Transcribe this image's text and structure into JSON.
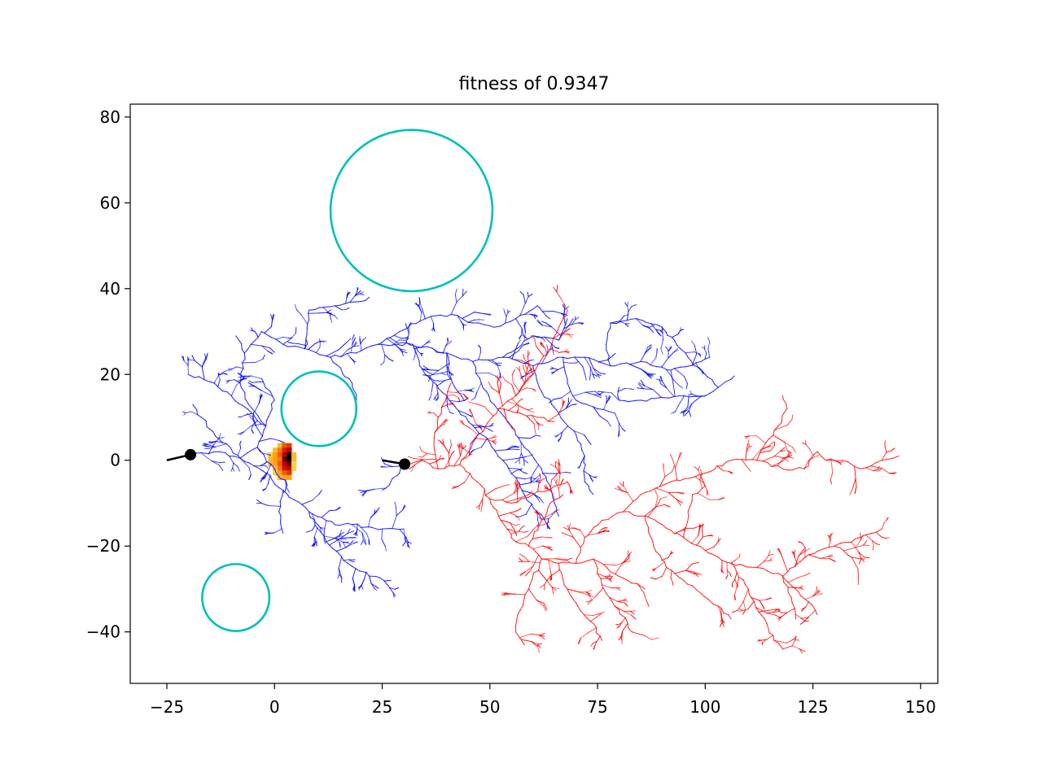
{
  "chart_data": {
    "type": "scatter",
    "title": "fitness of 0.9347",
    "xlabel": "",
    "ylabel": "",
    "xlim": [
      -33.5,
      154
    ],
    "ylim": [
      -52,
      83
    ],
    "xticks": [
      -25,
      0,
      25,
      50,
      75,
      100,
      125,
      150
    ],
    "yticks": [
      -40,
      -20,
      0,
      20,
      40,
      60,
      80
    ],
    "xtick_labels": [
      "−25",
      "0",
      "25",
      "50",
      "75",
      "100",
      "125",
      "150"
    ],
    "ytick_labels": [
      "−40",
      "−20",
      "0",
      "20",
      "40",
      "60",
      "80"
    ],
    "grid": false,
    "legend": "none",
    "obstacles": [
      {
        "cx": 31.8,
        "cy": 58.2,
        "r": 18.8
      },
      {
        "cx": 10.3,
        "cy": 12.0,
        "r": 8.7
      },
      {
        "cx": -9.0,
        "cy": -32.0,
        "r": 7.8
      }
    ],
    "start_points": [
      {
        "x": -19.5,
        "y": 1.3
      },
      {
        "x": 30.2,
        "y": -0.9
      }
    ],
    "start_segments": [
      {
        "x1": -25.0,
        "y1": 0.0,
        "x2": -19.5,
        "y2": 1.3
      },
      {
        "x1": 25.0,
        "y1": 0.0,
        "x2": 30.2,
        "y2": -0.9
      }
    ],
    "series": [
      {
        "color": "#0000ff",
        "trunks": [
          [
            [
              -19.5,
              1.3
            ],
            [
              -13,
              2
            ],
            [
              -8,
              0.5
            ],
            [
              -4,
              3
            ],
            [
              -2,
              8
            ],
            [
              -6,
              13
            ],
            [
              -8,
              18
            ],
            [
              -7,
              25
            ],
            [
              -9,
              29
            ]
          ],
          [
            [
              -7,
              25
            ],
            [
              -3,
              30
            ],
            [
              2,
              27
            ],
            [
              7,
              26
            ],
            [
              13,
              24
            ],
            [
              19,
              25
            ],
            [
              24,
              27
            ],
            [
              29,
              30
            ],
            [
              35,
              33
            ],
            [
              41,
              34
            ],
            [
              46,
              32
            ],
            [
              51,
              31
            ],
            [
              56,
              33
            ],
            [
              61,
              36
            ],
            [
              64,
              33
            ]
          ],
          [
            [
              7,
              26
            ],
            [
              8,
              35
            ],
            [
              14,
              36
            ],
            [
              20,
              37
            ],
            [
              22,
              38
            ]
          ],
          [
            [
              24,
              27
            ],
            [
              32,
              27
            ],
            [
              40,
              25
            ],
            [
              46,
              23
            ],
            [
              53,
              24
            ],
            [
              60,
              22
            ],
            [
              67,
              24
            ],
            [
              72,
              24
            ],
            [
              78,
              22
            ],
            [
              85,
              23
            ],
            [
              92,
              21
            ],
            [
              99,
              23
            ],
            [
              101,
              24
            ]
          ],
          [
            [
              78,
              22
            ],
            [
              77,
              27
            ],
            [
              78,
              32
            ],
            [
              84,
              33
            ],
            [
              90,
              31
            ],
            [
              96,
              24
            ],
            [
              100,
              20
            ],
            [
              103,
              17
            ],
            [
              100,
              15
            ],
            [
              94,
              15
            ],
            [
              85,
              14
            ],
            [
              80,
              14
            ],
            [
              80,
              17
            ]
          ],
          [
            [
              53,
              24
            ],
            [
              60,
              29
            ],
            [
              66,
              28
            ],
            [
              68,
              33
            ]
          ],
          [
            [
              -8,
              0.5
            ],
            [
              -2,
              -3
            ],
            [
              2,
              -7
            ],
            [
              8,
              -12
            ],
            [
              14,
              -15
            ],
            [
              18,
              -15
            ],
            [
              25,
              -16
            ],
            [
              30,
              -16
            ]
          ],
          [
            [
              8,
              -12
            ],
            [
              12,
              -19
            ],
            [
              17,
              -24
            ],
            [
              22,
              -27
            ],
            [
              27,
              -28
            ]
          ],
          [
            [
              2,
              -7
            ],
            [
              1,
              -12
            ],
            [
              2,
              -17
            ]
          ],
          [
            [
              -8,
              0.5
            ],
            [
              -13,
              5
            ],
            [
              -17,
              10
            ],
            [
              -19,
              13
            ]
          ],
          [
            [
              -2,
              8
            ],
            [
              -10,
              15
            ],
            [
              -14,
              18
            ],
            [
              -20,
              20
            ]
          ],
          [
            [
              -4,
              3
            ],
            [
              0,
              -2
            ],
            [
              3,
              -6
            ]
          ],
          [
            [
              46,
              23
            ],
            [
              48,
              18
            ],
            [
              51,
              13
            ],
            [
              55,
              8
            ],
            [
              58,
              3
            ],
            [
              62,
              -2
            ],
            [
              64,
              -6
            ],
            [
              65,
              -10
            ],
            [
              66,
              -13
            ]
          ],
          [
            [
              32,
              27
            ],
            [
              35,
              20
            ],
            [
              40,
              15
            ],
            [
              45,
              9
            ],
            [
              50,
              4
            ],
            [
              53,
              0
            ],
            [
              56,
              -4
            ],
            [
              58,
              -8
            ],
            [
              61,
              -12
            ],
            [
              64,
              -16
            ]
          ],
          [
            [
              40,
              25
            ],
            [
              41,
              19
            ],
            [
              44,
              14
            ]
          ],
          [
            [
              60,
              22
            ],
            [
              62,
              16
            ],
            [
              66,
              11
            ],
            [
              70,
              6
            ],
            [
              72,
              1
            ],
            [
              72,
              -5
            ],
            [
              74,
              -8
            ]
          ],
          [
            [
              67,
              24
            ],
            [
              68,
              18
            ],
            [
              70,
              14
            ],
            [
              75,
              12
            ],
            [
              79,
              11
            ]
          ],
          [
            [
              30,
              0
            ],
            [
              29,
              -3
            ],
            [
              25,
              -7
            ]
          ],
          [
            [
              -2,
              8
            ],
            [
              0,
              14
            ],
            [
              -3,
              19
            ]
          ],
          [
            [
              13,
              24
            ],
            [
              18,
              18
            ],
            [
              19,
              14
            ]
          ]
        ]
      },
      {
        "color": "#ff0000",
        "trunks": [
          [
            [
              30.2,
              -0.9
            ],
            [
              34,
              0
            ],
            [
              38,
              -2
            ],
            [
              43,
              -1
            ],
            [
              47,
              -5
            ],
            [
              50,
              -9
            ],
            [
              52,
              -13
            ],
            [
              54,
              -16
            ],
            [
              56,
              -19
            ],
            [
              59,
              -20
            ],
            [
              62,
              -23
            ],
            [
              66,
              -24
            ],
            [
              70,
              -24
            ],
            [
              74,
              -23
            ],
            [
              78,
              -26
            ],
            [
              82,
              -28
            ],
            [
              86,
              -30
            ]
          ],
          [
            [
              43,
              -1
            ],
            [
              46,
              4
            ],
            [
              49,
              8
            ],
            [
              52,
              12
            ],
            [
              56,
              15
            ],
            [
              58,
              18
            ],
            [
              60,
              20
            ]
          ],
          [
            [
              38,
              -2
            ],
            [
              37,
              4
            ],
            [
              38,
              10
            ],
            [
              40,
              15
            ],
            [
              41,
              18
            ]
          ],
          [
            [
              56,
              15
            ],
            [
              60,
              20
            ],
            [
              64,
              26
            ],
            [
              66,
              31
            ],
            [
              68,
              35
            ]
          ],
          [
            [
              50,
              -9
            ],
            [
              55,
              -10
            ],
            [
              60,
              -8
            ],
            [
              65,
              -6
            ],
            [
              68,
              -5
            ]
          ],
          [
            [
              62,
              -23
            ],
            [
              59,
              -30
            ],
            [
              57,
              -35
            ],
            [
              56,
              -40
            ],
            [
              58,
              -43
            ]
          ],
          [
            [
              66,
              -24
            ],
            [
              68,
              -30
            ],
            [
              71,
              -35
            ],
            [
              74,
              -38
            ],
            [
              76,
              -42
            ]
          ],
          [
            [
              70,
              -24
            ],
            [
              72,
              -18
            ],
            [
              76,
              -14
            ],
            [
              81,
              -12
            ],
            [
              86,
              -13
            ],
            [
              90,
              -15
            ],
            [
              95,
              -18
            ],
            [
              100,
              -21
            ],
            [
              106,
              -24
            ],
            [
              112,
              -25
            ],
            [
              118,
              -27
            ],
            [
              120,
              -32
            ],
            [
              121,
              -37
            ]
          ],
          [
            [
              81,
              -12
            ],
            [
              85,
              -8
            ],
            [
              92,
              -5
            ],
            [
              100,
              -3
            ],
            [
              106,
              0
            ],
            [
              112,
              0
            ],
            [
              118,
              -2
            ],
            [
              123,
              -2
            ]
          ],
          [
            [
              106,
              -24
            ],
            [
              110,
              -30
            ],
            [
              113,
              -36
            ],
            [
              116,
              -42
            ],
            [
              118,
              -44
            ]
          ],
          [
            [
              118,
              -27
            ],
            [
              124,
              -22
            ],
            [
              130,
              -20
            ],
            [
              136,
              -18
            ],
            [
              141,
              -16
            ]
          ],
          [
            [
              123,
              -2
            ],
            [
              126,
              2
            ],
            [
              128,
              0
            ],
            [
              132,
              0
            ],
            [
              136,
              -2
            ],
            [
              141,
              0
            ],
            [
              145,
              1
            ]
          ],
          [
            [
              112,
              0
            ],
            [
              114,
              4
            ],
            [
              117,
              8
            ],
            [
              119,
              12
            ],
            [
              118,
              15
            ]
          ],
          [
            [
              86,
              -13
            ],
            [
              88,
              -20
            ],
            [
              91,
              -25
            ],
            [
              95,
              -28
            ],
            [
              99,
              -31
            ],
            [
              103,
              -34
            ],
            [
              106,
              -37
            ]
          ],
          [
            [
              74,
              -23
            ],
            [
              76,
              -29
            ],
            [
              79,
              -34
            ],
            [
              82,
              -38
            ],
            [
              83,
              -40
            ]
          ],
          [
            [
              59,
              -20
            ],
            [
              62,
              -14
            ],
            [
              64,
              -10
            ],
            [
              67,
              -8
            ]
          ],
          [
            [
              52,
              12
            ],
            [
              57,
              11
            ],
            [
              61,
              10
            ],
            [
              65,
              9
            ]
          ],
          [
            [
              95,
              -18
            ],
            [
              96,
              -12
            ],
            [
              97,
              -8
            ],
            [
              100,
              -6
            ]
          ],
          [
            [
              118,
              -27
            ],
            [
              121,
              -30
            ],
            [
              124,
              -33
            ],
            [
              126,
              -36
            ]
          ],
          [
            [
              130,
              -20
            ],
            [
              133,
              -22
            ],
            [
              137,
              -23
            ]
          ]
        ]
      }
    ],
    "heatmap": {
      "x0": -1.5,
      "x1": 5.0,
      "y0": -4.5,
      "y1": 4.0,
      "nx": 6,
      "ny": 8,
      "values": [
        [
          0.0,
          0.0,
          0.3,
          0.6,
          0.7,
          0.0
        ],
        [
          0.0,
          0.3,
          0.5,
          0.8,
          0.9,
          0.0
        ],
        [
          0.2,
          0.4,
          0.6,
          0.9,
          1.0,
          0.3
        ],
        [
          0.3,
          0.4,
          0.5,
          0.95,
          1.0,
          0.3
        ],
        [
          0.3,
          0.4,
          0.6,
          0.9,
          0.95,
          0.2
        ],
        [
          0.0,
          0.3,
          0.5,
          0.85,
          0.9,
          0.2
        ],
        [
          0.0,
          0.2,
          0.4,
          0.6,
          0.7,
          0.0
        ],
        [
          0.0,
          0.0,
          0.3,
          0.4,
          0.4,
          0.0
        ]
      ]
    }
  }
}
